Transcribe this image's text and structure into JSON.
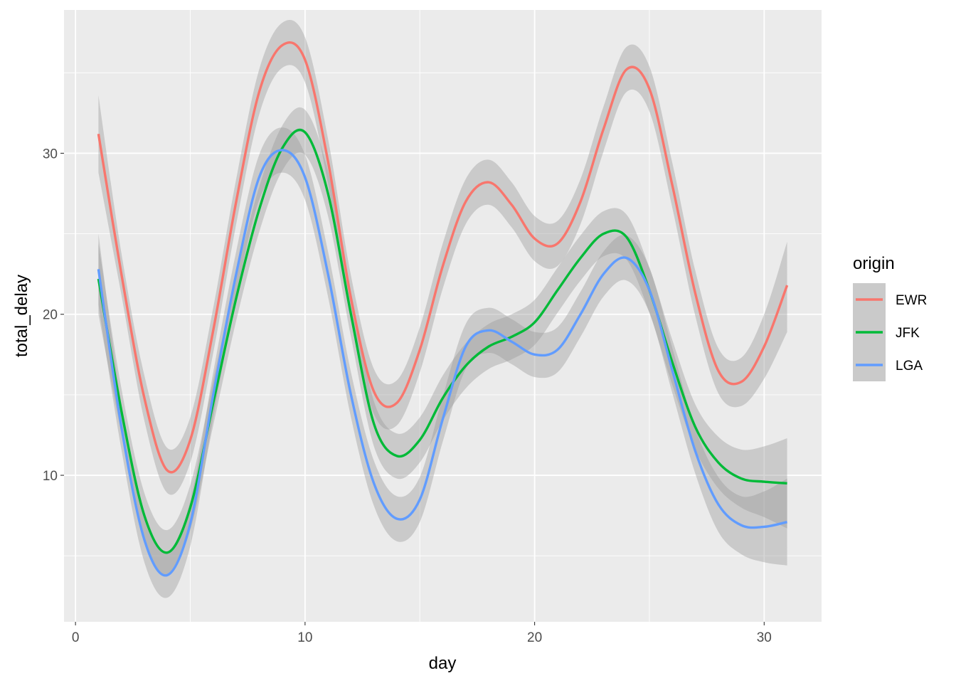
{
  "chart_data": {
    "type": "line",
    "smoothed_with_confidence_band": true,
    "xlabel": "day",
    "ylabel": "total_delay",
    "xlim": [
      -0.5,
      32.5
    ],
    "ylim": [
      0.9,
      38.9
    ],
    "x_ticks": [
      0,
      10,
      20,
      30
    ],
    "x_tick_labels": [
      "0",
      "10",
      "20",
      "30"
    ],
    "y_ticks": [
      10,
      20,
      30
    ],
    "y_tick_labels": [
      "10",
      "20",
      "30"
    ],
    "grid": true,
    "background": "#EBEBEB",
    "band_color": "#999999",
    "legend": {
      "title": "origin",
      "position": "right"
    },
    "series": [
      {
        "name": "EWR",
        "color": "#F8766D",
        "x": [
          1,
          2,
          3,
          4,
          5,
          6,
          7,
          8,
          9,
          10,
          11,
          12,
          13,
          14,
          15,
          16,
          17,
          18,
          19,
          20,
          21,
          22,
          23,
          24,
          25,
          26,
          27,
          28,
          29,
          30,
          31
        ],
        "y": [
          31.2,
          22.5,
          14.8,
          10.3,
          12.2,
          19.0,
          27.0,
          33.8,
          36.7,
          35.8,
          29.5,
          21.0,
          15.2,
          14.5,
          17.8,
          23.0,
          27.0,
          28.2,
          26.8,
          24.7,
          24.4,
          27.0,
          31.5,
          35.2,
          34.0,
          28.0,
          21.3,
          16.5,
          15.8,
          18.0,
          21.8
        ],
        "lower": [
          28.8,
          21.2,
          13.4,
          8.9,
          10.8,
          17.6,
          25.6,
          32.4,
          35.3,
          34.4,
          28.1,
          19.6,
          13.8,
          13.1,
          16.4,
          21.6,
          25.6,
          26.8,
          25.4,
          23.3,
          23.0,
          25.6,
          30.1,
          33.8,
          32.6,
          26.6,
          19.9,
          15.1,
          14.3,
          16.0,
          18.9
        ],
        "upper": [
          33.6,
          23.8,
          16.2,
          11.7,
          13.6,
          20.4,
          28.4,
          35.2,
          38.1,
          37.2,
          30.9,
          22.4,
          16.6,
          15.9,
          19.2,
          24.4,
          28.4,
          29.6,
          28.2,
          26.1,
          25.8,
          28.4,
          32.9,
          36.6,
          35.4,
          29.4,
          22.7,
          17.9,
          17.3,
          20.0,
          24.5
        ]
      },
      {
        "name": "JFK",
        "color": "#00BA38",
        "x": [
          1,
          2,
          3,
          4,
          5,
          6,
          7,
          8,
          9,
          10,
          11,
          12,
          13,
          14,
          15,
          16,
          17,
          18,
          19,
          20,
          21,
          22,
          23,
          24,
          25,
          26,
          27,
          28,
          29,
          30,
          31
        ],
        "y": [
          22.2,
          14.0,
          7.5,
          5.2,
          8.0,
          14.5,
          21.0,
          26.5,
          30.3,
          31.3,
          27.5,
          20.0,
          13.2,
          11.2,
          12.2,
          14.8,
          16.8,
          18.0,
          18.6,
          19.5,
          21.5,
          23.5,
          25.0,
          24.8,
          21.5,
          17.0,
          13.0,
          10.8,
          9.8,
          9.6,
          9.5
        ],
        "lower": [
          20.0,
          12.6,
          6.1,
          3.8,
          6.6,
          13.1,
          19.6,
          25.1,
          28.9,
          29.9,
          26.1,
          18.6,
          11.8,
          9.8,
          10.8,
          13.4,
          15.4,
          16.6,
          17.2,
          18.1,
          20.1,
          22.1,
          23.6,
          23.4,
          20.1,
          15.6,
          11.6,
          9.2,
          8.0,
          7.4,
          6.7
        ],
        "upper": [
          24.4,
          15.4,
          8.9,
          6.6,
          9.4,
          15.9,
          22.4,
          27.9,
          31.7,
          32.7,
          28.9,
          21.4,
          14.6,
          12.6,
          13.6,
          16.2,
          18.2,
          19.4,
          20.0,
          20.9,
          22.9,
          24.9,
          26.4,
          26.2,
          22.9,
          18.4,
          14.4,
          12.4,
          11.6,
          11.8,
          12.3
        ]
      },
      {
        "name": "LGA",
        "color": "#619CFF",
        "x": [
          1,
          2,
          3,
          4,
          5,
          6,
          7,
          8,
          9,
          10,
          11,
          12,
          13,
          14,
          15,
          16,
          17,
          18,
          19,
          20,
          21,
          22,
          23,
          24,
          25,
          26,
          27,
          28,
          29,
          30,
          31
        ],
        "y": [
          22.8,
          13.0,
          6.0,
          3.8,
          7.0,
          15.0,
          22.5,
          28.5,
          30.2,
          28.5,
          22.5,
          15.0,
          9.5,
          7.3,
          8.5,
          13.5,
          18.0,
          19.0,
          18.3,
          17.5,
          17.8,
          20.0,
          22.5,
          23.5,
          21.5,
          16.5,
          11.5,
          8.2,
          6.9,
          6.8,
          7.1
        ],
        "lower": [
          20.6,
          11.6,
          4.6,
          2.4,
          5.6,
          13.6,
          21.1,
          27.1,
          28.8,
          27.1,
          21.1,
          13.6,
          8.1,
          5.9,
          7.1,
          12.1,
          16.6,
          17.6,
          16.9,
          16.1,
          16.4,
          18.6,
          21.1,
          22.1,
          20.1,
          15.1,
          10.1,
          6.5,
          5.1,
          4.6,
          4.4
        ],
        "upper": [
          25.0,
          14.4,
          7.4,
          5.2,
          8.4,
          16.4,
          23.9,
          29.9,
          31.6,
          29.9,
          23.9,
          16.4,
          10.9,
          8.7,
          9.9,
          14.9,
          19.4,
          20.4,
          19.7,
          18.9,
          19.2,
          21.4,
          23.9,
          24.9,
          22.9,
          17.9,
          12.9,
          9.9,
          8.7,
          9.0,
          9.8
        ]
      }
    ]
  }
}
